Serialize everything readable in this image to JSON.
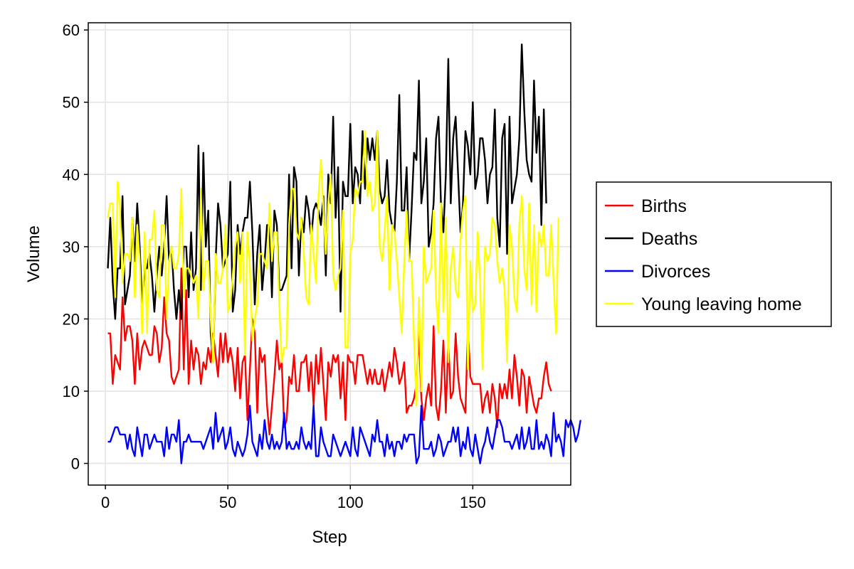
{
  "chart_data": {
    "type": "line",
    "title": "",
    "xlabel": "Step",
    "ylabel": "Volume",
    "xlim": [
      -7,
      190
    ],
    "ylim": [
      -3,
      61
    ],
    "xticks": [
      0,
      50,
      100,
      150
    ],
    "yticks": [
      0,
      10,
      20,
      30,
      40,
      50,
      60
    ],
    "grid": true,
    "legend_position": "right",
    "x_start": 1,
    "series": [
      {
        "name": "Births",
        "color": "#ff0000",
        "values": [
          18,
          18,
          11,
          15,
          14,
          13,
          23,
          17,
          19,
          19,
          17,
          11,
          18,
          13,
          16,
          17,
          16,
          15,
          15,
          19,
          18,
          14,
          16,
          23,
          18,
          17,
          12,
          11,
          12,
          13,
          27,
          13,
          24,
          11,
          17,
          13,
          16,
          15,
          11,
          14,
          13,
          16,
          14,
          18,
          15,
          12,
          18,
          14,
          18,
          14,
          16,
          14,
          10,
          16,
          9,
          14,
          15,
          6,
          13,
          20,
          18,
          7,
          16,
          14,
          15,
          8,
          4,
          8,
          12,
          17,
          13,
          14,
          5,
          6,
          12,
          11,
          15,
          10,
          10,
          14,
          14,
          15,
          10,
          14,
          8,
          15,
          11,
          16,
          11,
          6,
          14,
          12,
          15,
          14,
          15,
          9,
          14,
          6,
          15,
          14,
          14,
          11,
          15,
          15,
          15,
          13,
          11,
          13,
          11,
          13,
          11,
          11,
          13,
          10,
          12,
          14,
          12,
          16,
          14,
          11,
          12,
          14,
          7,
          8,
          8,
          9,
          11,
          18,
          9,
          6,
          9,
          11,
          8,
          19,
          8,
          6,
          10,
          17,
          7,
          17,
          9,
          10,
          18,
          12,
          9,
          8,
          7,
          19,
          12,
          11,
          11,
          11,
          11,
          7,
          9,
          10,
          7,
          11,
          9,
          5,
          11,
          9,
          11,
          9,
          13,
          9,
          15,
          12,
          8,
          13,
          12,
          7,
          12,
          10,
          8,
          7,
          9,
          9,
          12,
          14,
          11,
          10
        ]
      },
      {
        "name": "Deaths",
        "color": "#000000",
        "values": [
          27,
          34,
          25,
          20,
          27,
          27,
          37,
          22,
          24,
          26,
          34,
          28,
          36,
          30,
          22,
          27,
          27,
          29,
          26,
          21,
          26,
          30,
          26,
          30,
          37,
          28,
          30,
          24,
          20,
          24,
          20,
          30,
          30,
          23,
          32,
          24,
          27,
          44,
          24,
          43,
          30,
          35,
          18,
          14,
          28,
          36,
          33,
          27,
          28,
          29,
          39,
          21,
          24,
          33,
          29,
          32,
          34,
          34,
          39,
          32,
          22,
          29,
          33,
          24,
          28,
          33,
          33,
          23,
          35,
          33,
          24,
          24,
          25,
          26,
          40,
          27,
          41,
          39,
          26,
          34,
          32,
          37,
          35,
          31,
          35,
          36,
          35,
          33,
          37,
          26,
          40,
          36,
          48,
          34,
          41,
          21,
          39,
          37,
          37,
          47,
          36,
          41,
          40,
          36,
          46,
          38,
          45,
          42,
          45,
          42,
          46,
          38,
          36,
          37,
          42,
          35,
          33,
          32,
          39,
          51,
          35,
          35,
          41,
          28,
          35,
          43,
          42,
          53,
          36,
          39,
          45,
          30,
          32,
          36,
          45,
          48,
          36,
          32,
          40,
          56,
          36,
          45,
          48,
          40,
          32,
          36,
          46,
          44,
          40,
          50,
          38,
          40,
          45,
          45,
          42,
          36,
          40,
          41,
          49,
          34,
          30,
          45,
          47,
          29,
          48,
          36,
          38,
          40,
          45,
          58,
          49,
          42,
          40,
          39,
          53,
          43,
          48,
          33,
          49,
          36
        ]
      },
      {
        "name": "Divorces",
        "color": "#0000ff",
        "values": [
          3,
          3,
          4,
          5,
          5,
          4,
          4,
          4,
          2,
          4,
          2,
          1,
          5,
          3,
          1,
          4,
          4,
          2,
          3,
          4,
          3,
          3,
          3,
          1,
          5,
          2,
          4,
          4,
          3,
          6,
          0,
          3,
          3,
          4,
          3,
          3,
          3,
          3,
          3,
          2,
          3,
          4,
          5,
          2,
          7,
          3,
          4,
          5,
          2,
          3,
          5,
          2,
          1,
          3,
          2,
          1,
          2,
          4,
          8,
          3,
          2,
          1,
          4,
          2,
          6,
          3,
          2,
          4,
          2,
          3,
          2,
          3,
          7,
          2,
          3,
          2,
          2,
          3,
          2,
          5,
          3,
          2,
          3,
          2,
          8,
          1,
          1,
          5,
          3,
          2,
          1,
          1,
          4,
          3,
          2,
          1,
          2,
          3,
          2,
          1,
          5,
          2,
          1,
          5,
          4,
          3,
          2,
          1,
          4,
          3,
          6,
          3,
          3,
          1,
          4,
          2,
          3,
          1,
          3,
          3,
          2,
          4,
          3,
          4,
          4,
          4,
          0,
          1,
          8,
          2,
          2,
          2,
          3,
          1,
          2,
          4,
          3,
          1,
          2,
          3,
          3,
          5,
          3,
          5,
          1,
          3,
          2,
          5,
          2,
          1,
          4,
          2,
          0,
          2,
          3,
          5,
          3,
          2,
          4,
          6,
          6,
          5,
          3,
          3,
          3,
          2,
          3,
          4,
          2,
          5,
          2,
          3,
          5,
          2,
          2,
          6,
          2,
          3,
          2,
          4,
          3,
          1,
          7,
          3,
          4,
          3,
          1,
          6,
          5,
          6,
          5,
          3,
          4,
          6
        ]
      },
      {
        "name": "Young leaving home",
        "color": "#ffff00",
        "values": [
          34,
          36,
          36,
          23,
          39,
          35,
          25,
          29,
          29,
          28,
          34,
          23,
          33,
          28,
          18,
          32,
          18,
          31,
          31,
          35,
          24,
          23,
          33,
          33,
          20,
          28,
          30,
          27,
          27,
          29,
          38,
          23,
          27,
          27,
          26,
          25,
          26,
          20,
          38,
          24,
          28,
          28,
          20,
          14,
          29,
          25,
          25,
          27,
          33,
          21,
          22,
          26,
          30,
          32,
          25,
          32,
          15,
          32,
          27,
          17,
          20,
          22,
          29,
          29,
          28,
          27,
          36,
          28,
          32,
          32,
          22,
          14,
          16,
          16,
          33,
          38,
          38,
          32,
          31,
          34,
          29,
          23,
          22,
          33,
          29,
          25,
          37,
          42,
          35,
          29,
          36,
          40,
          26,
          24,
          26,
          27,
          35,
          16,
          16,
          29,
          31,
          38,
          37,
          39,
          39,
          46,
          37,
          39,
          35,
          36,
          46,
          30,
          28,
          32,
          37,
          24,
          33,
          32,
          28,
          23,
          18,
          28,
          35,
          28,
          28,
          17,
          8,
          23,
          10,
          30,
          25,
          26,
          27,
          35,
          23,
          18,
          36,
          21,
          34,
          14,
          27,
          30,
          24,
          23,
          31,
          35,
          37,
          13,
          28,
          21,
          22,
          32,
          25,
          13,
          30,
          28,
          29,
          34,
          33,
          28,
          25,
          27,
          24,
          14,
          33,
          30,
          23,
          21,
          33,
          37,
          27,
          24,
          36,
          22,
          33,
          21,
          32,
          30,
          33,
          26,
          26,
          33,
          25,
          18,
          34
        ]
      }
    ]
  }
}
